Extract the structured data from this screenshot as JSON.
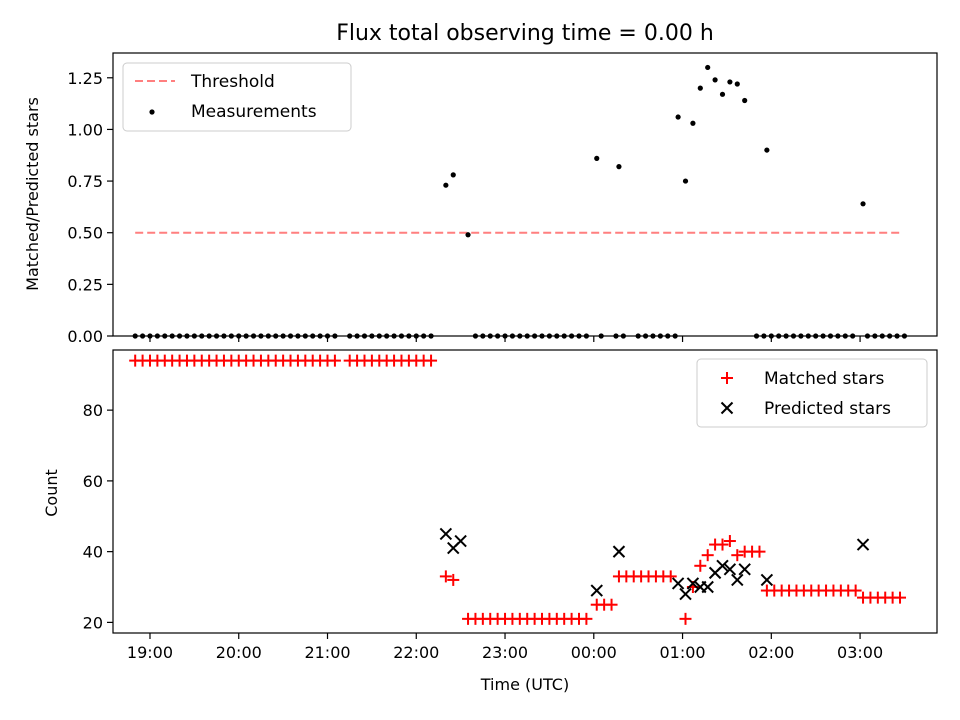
{
  "chart_data": [
    {
      "type": "scatter",
      "title": "Flux total observing time = 0.00 h",
      "xlabel": "",
      "ylabel": "Matched/Predicted stars",
      "ylim": [
        0,
        1.37
      ],
      "xlim": [
        "18:35",
        "03:52"
      ],
      "yticks": [
        "0.00",
        "0.25",
        "0.50",
        "0.75",
        "1.00",
        "1.25"
      ],
      "legend": {
        "position": "top-left",
        "entries": [
          "Threshold",
          "Measurements"
        ]
      },
      "series": [
        {
          "name": "Threshold",
          "kind": "dashed-line",
          "color": "#ff7f7f",
          "points": [
            [
              "18:50",
              0.5
            ],
            [
              "03:28",
              0.5
            ]
          ]
        },
        {
          "name": "Measurements",
          "kind": "points",
          "color": "#000000",
          "points": [
            [
              "18:50",
              0
            ],
            [
              "18:55",
              0
            ],
            [
              "19:00",
              0
            ],
            [
              "19:05",
              0
            ],
            [
              "19:10",
              0
            ],
            [
              "19:15",
              0
            ],
            [
              "19:20",
              0
            ],
            [
              "19:25",
              0
            ],
            [
              "19:30",
              0
            ],
            [
              "19:35",
              0
            ],
            [
              "19:40",
              0
            ],
            [
              "19:45",
              0
            ],
            [
              "19:50",
              0
            ],
            [
              "19:55",
              0
            ],
            [
              "20:00",
              0
            ],
            [
              "20:05",
              0
            ],
            [
              "20:10",
              0
            ],
            [
              "20:15",
              0
            ],
            [
              "20:20",
              0
            ],
            [
              "20:25",
              0
            ],
            [
              "20:30",
              0
            ],
            [
              "20:35",
              0
            ],
            [
              "20:40",
              0
            ],
            [
              "20:45",
              0
            ],
            [
              "20:50",
              0
            ],
            [
              "20:55",
              0
            ],
            [
              "21:00",
              0
            ],
            [
              "21:05",
              0
            ],
            [
              "21:15",
              0
            ],
            [
              "21:20",
              0
            ],
            [
              "21:25",
              0
            ],
            [
              "21:30",
              0
            ],
            [
              "21:35",
              0
            ],
            [
              "21:40",
              0
            ],
            [
              "21:45",
              0
            ],
            [
              "21:50",
              0
            ],
            [
              "21:55",
              0
            ],
            [
              "22:00",
              0
            ],
            [
              "22:05",
              0
            ],
            [
              "22:10",
              0
            ],
            [
              "22:20",
              0.73
            ],
            [
              "22:25",
              0.78
            ],
            [
              "22:35",
              0.49
            ],
            [
              "22:40",
              0
            ],
            [
              "22:45",
              0
            ],
            [
              "22:50",
              0
            ],
            [
              "22:55",
              0
            ],
            [
              "23:00",
              0
            ],
            [
              "23:05",
              0
            ],
            [
              "23:10",
              0
            ],
            [
              "23:15",
              0
            ],
            [
              "23:20",
              0
            ],
            [
              "23:25",
              0
            ],
            [
              "23:30",
              0
            ],
            [
              "23:35",
              0
            ],
            [
              "23:40",
              0
            ],
            [
              "23:45",
              0
            ],
            [
              "23:50",
              0
            ],
            [
              "23:55",
              0
            ],
            [
              "00:05",
              0
            ],
            [
              "00:15",
              0
            ],
            [
              "00:20",
              0
            ],
            [
              "00:30",
              0
            ],
            [
              "00:35",
              0
            ],
            [
              "00:40",
              0
            ],
            [
              "00:45",
              0
            ],
            [
              "00:50",
              0
            ],
            [
              "00:55",
              0
            ],
            [
              "00:02",
              0.86
            ],
            [
              "00:17",
              0.82
            ],
            [
              "00:57",
              1.06
            ],
            [
              "01:02",
              0.75
            ],
            [
              "01:07",
              1.03
            ],
            [
              "01:12",
              1.2
            ],
            [
              "01:17",
              1.3
            ],
            [
              "01:22",
              1.24
            ],
            [
              "01:27",
              1.17
            ],
            [
              "01:32",
              1.23
            ],
            [
              "01:37",
              1.22
            ],
            [
              "01:42",
              1.14
            ],
            [
              "01:57",
              0.9
            ],
            [
              "01:50",
              0
            ],
            [
              "01:55",
              0
            ],
            [
              "02:00",
              0
            ],
            [
              "02:05",
              0
            ],
            [
              "02:10",
              0
            ],
            [
              "02:15",
              0
            ],
            [
              "02:20",
              0
            ],
            [
              "02:25",
              0
            ],
            [
              "02:30",
              0
            ],
            [
              "02:35",
              0
            ],
            [
              "02:40",
              0
            ],
            [
              "02:45",
              0
            ],
            [
              "02:50",
              0
            ],
            [
              "02:55",
              0
            ],
            [
              "03:05",
              0
            ],
            [
              "03:10",
              0
            ],
            [
              "03:15",
              0
            ],
            [
              "03:20",
              0
            ],
            [
              "03:25",
              0
            ],
            [
              "03:30",
              0
            ],
            [
              "03:02",
              0.64
            ]
          ]
        }
      ]
    },
    {
      "type": "scatter",
      "title": "",
      "xlabel": "Time (UTC)",
      "ylabel": "Count",
      "ylim": [
        17,
        97
      ],
      "xlim": [
        "18:35",
        "03:52"
      ],
      "yticks": [
        "20",
        "40",
        "60",
        "80"
      ],
      "xticks": [
        "19:00",
        "20:00",
        "21:00",
        "22:00",
        "23:00",
        "00:00",
        "01:00",
        "02:00",
        "03:00"
      ],
      "legend": {
        "position": "top-right",
        "entries": [
          "Matched stars",
          "Predicted stars"
        ]
      },
      "series": [
        {
          "name": "Matched stars",
          "marker": "plus",
          "color": "#ff0000",
          "points": [
            [
              "18:50",
              94
            ],
            [
              "18:55",
              94
            ],
            [
              "19:00",
              94
            ],
            [
              "19:05",
              94
            ],
            [
              "19:10",
              94
            ],
            [
              "19:15",
              94
            ],
            [
              "19:20",
              94
            ],
            [
              "19:25",
              94
            ],
            [
              "19:30",
              94
            ],
            [
              "19:35",
              94
            ],
            [
              "19:40",
              94
            ],
            [
              "19:45",
              94
            ],
            [
              "19:50",
              94
            ],
            [
              "19:55",
              94
            ],
            [
              "20:00",
              94
            ],
            [
              "20:05",
              94
            ],
            [
              "20:10",
              94
            ],
            [
              "20:15",
              94
            ],
            [
              "20:20",
              94
            ],
            [
              "20:25",
              94
            ],
            [
              "20:30",
              94
            ],
            [
              "20:35",
              94
            ],
            [
              "20:40",
              94
            ],
            [
              "20:45",
              94
            ],
            [
              "20:50",
              94
            ],
            [
              "20:55",
              94
            ],
            [
              "21:00",
              94
            ],
            [
              "21:05",
              94
            ],
            [
              "21:15",
              94
            ],
            [
              "21:20",
              94
            ],
            [
              "21:25",
              94
            ],
            [
              "21:30",
              94
            ],
            [
              "21:35",
              94
            ],
            [
              "21:40",
              94
            ],
            [
              "21:45",
              94
            ],
            [
              "21:50",
              94
            ],
            [
              "21:55",
              94
            ],
            [
              "22:00",
              94
            ],
            [
              "22:05",
              94
            ],
            [
              "22:10",
              94
            ],
            [
              "22:20",
              33
            ],
            [
              "22:25",
              32
            ],
            [
              "22:35",
              21
            ],
            [
              "22:40",
              21
            ],
            [
              "22:45",
              21
            ],
            [
              "22:50",
              21
            ],
            [
              "22:55",
              21
            ],
            [
              "23:00",
              21
            ],
            [
              "23:05",
              21
            ],
            [
              "23:10",
              21
            ],
            [
              "23:15",
              21
            ],
            [
              "23:20",
              21
            ],
            [
              "23:25",
              21
            ],
            [
              "23:30",
              21
            ],
            [
              "23:35",
              21
            ],
            [
              "23:40",
              21
            ],
            [
              "23:45",
              21
            ],
            [
              "23:50",
              21
            ],
            [
              "23:55",
              21
            ],
            [
              "00:02",
              25
            ],
            [
              "00:07",
              25
            ],
            [
              "00:12",
              25
            ],
            [
              "00:17",
              33
            ],
            [
              "00:22",
              33
            ],
            [
              "00:27",
              33
            ],
            [
              "00:32",
              33
            ],
            [
              "00:37",
              33
            ],
            [
              "00:42",
              33
            ],
            [
              "00:47",
              33
            ],
            [
              "00:52",
              33
            ],
            [
              "01:02",
              21
            ],
            [
              "01:07",
              30
            ],
            [
              "01:12",
              36
            ],
            [
              "01:17",
              39
            ],
            [
              "01:22",
              42
            ],
            [
              "01:27",
              42
            ],
            [
              "01:32",
              43
            ],
            [
              "01:37",
              39
            ],
            [
              "01:42",
              40
            ],
            [
              "01:47",
              40
            ],
            [
              "01:52",
              40
            ],
            [
              "01:57",
              29
            ],
            [
              "02:02",
              29
            ],
            [
              "02:07",
              29
            ],
            [
              "02:12",
              29
            ],
            [
              "02:17",
              29
            ],
            [
              "02:22",
              29
            ],
            [
              "02:27",
              29
            ],
            [
              "02:32",
              29
            ],
            [
              "02:37",
              29
            ],
            [
              "02:42",
              29
            ],
            [
              "02:47",
              29
            ],
            [
              "02:52",
              29
            ],
            [
              "02:57",
              29
            ],
            [
              "03:02",
              27
            ],
            [
              "03:07",
              27
            ],
            [
              "03:12",
              27
            ],
            [
              "03:17",
              27
            ],
            [
              "03:22",
              27
            ],
            [
              "03:27",
              27
            ]
          ]
        },
        {
          "name": "Predicted stars",
          "marker": "x",
          "color": "#000000",
          "points": [
            [
              "22:20",
              45
            ],
            [
              "22:25",
              41
            ],
            [
              "22:30",
              43
            ],
            [
              "00:02",
              29
            ],
            [
              "00:17",
              40
            ],
            [
              "00:57",
              31
            ],
            [
              "01:02",
              28
            ],
            [
              "01:07",
              31
            ],
            [
              "01:12",
              30
            ],
            [
              "01:17",
              30
            ],
            [
              "01:22",
              34
            ],
            [
              "01:27",
              36
            ],
            [
              "01:32",
              35
            ],
            [
              "01:37",
              32
            ],
            [
              "01:42",
              35
            ],
            [
              "01:57",
              32
            ],
            [
              "03:02",
              42
            ]
          ]
        }
      ]
    }
  ]
}
